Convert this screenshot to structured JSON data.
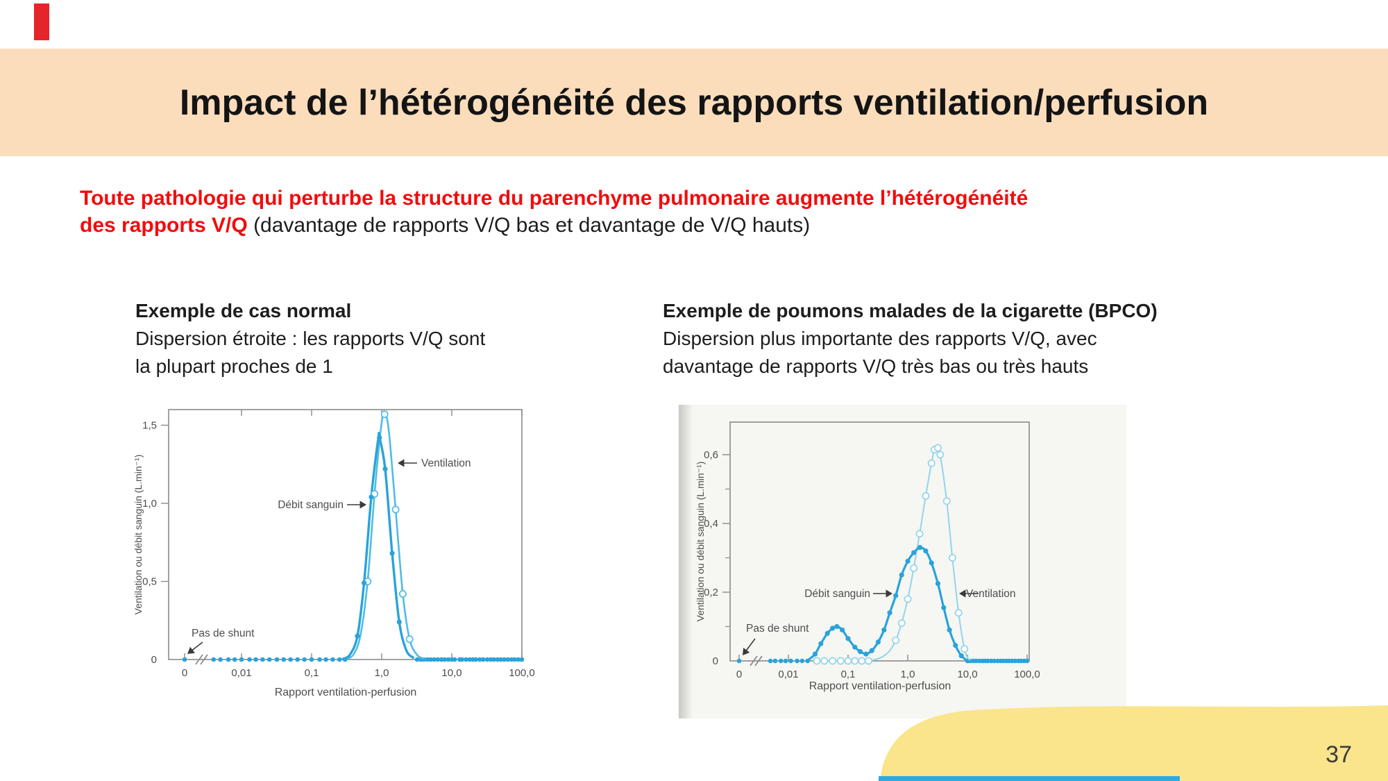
{
  "slide": {
    "title": "Impact de l’hétérogénéité des rapports ventilation/perfusion",
    "page_number": "37"
  },
  "intro": {
    "line1": "Toute pathologie qui perturbe la structure du parenchyme pulmonaire augmente l’hétérogénéité",
    "line2_red": "des rapports V/Q",
    "line2_black": " (davantage de rapports V/Q bas et davantage de V/Q hauts)"
  },
  "columns": {
    "left": {
      "heading": "Exemple de cas normal",
      "line1": "Dispersion étroite : les rapports V/Q sont",
      "line2": "la plupart proches de 1"
    },
    "right": {
      "heading": "Exemple de poumons malades de la cigarette (BPCO)",
      "line1": "Dispersion plus importante des rapports V/Q, avec",
      "line2": "davantage de rapports V/Q très bas ou très hauts"
    }
  },
  "colors": {
    "banner": "#FBDCBB",
    "text_red": "#F40B0B",
    "red_bar": "#E4252B",
    "yellow_shape": "#FAE58D",
    "blue_strip": "#2FA9DF",
    "chart_axis": "#8a8a8a",
    "chart_text": "#4d4d4d",
    "debit_blue": "#29A3DA",
    "vent_blue_light": "#4FBCE5",
    "vent_blue_lighter": "#93D4EF"
  },
  "chart_data": [
    {
      "type": "line",
      "title": "Exemple de cas normal",
      "xlabel": "Rapport ventilation-perfusion",
      "ylabel": "Ventilation ou débit sanguin (L.min⁻¹)",
      "x_scale": "log-with-zero-break",
      "ylim": [
        0,
        1.6
      ],
      "no_shunt_label": "Pas de shunt",
      "x_ticks": [
        {
          "v": 0,
          "label": "0"
        },
        {
          "v": 0.01,
          "label": "0,01"
        },
        {
          "v": 0.1,
          "label": "0,1"
        },
        {
          "v": 1,
          "label": "1,0"
        },
        {
          "v": 10,
          "label": "10,0"
        },
        {
          "v": 100,
          "label": "100,0"
        }
      ],
      "y_ticks": [
        {
          "v": 0,
          "label": "0"
        },
        {
          "v": 0.5,
          "label": "0,5"
        },
        {
          "v": 1.0,
          "label": "1,0"
        },
        {
          "v": 1.5,
          "label": "1,5"
        }
      ],
      "y_minor_ticks": [],
      "series": [
        {
          "name": "Ventilation",
          "color": "#4FBCE5",
          "marker": "open",
          "stroke_width": 2.6,
          "points": [
            [
              0.32,
              0.005
            ],
            [
              0.4,
              0.035
            ],
            [
              0.5,
              0.16
            ],
            [
              0.63,
              0.5
            ],
            [
              0.79,
              1.06
            ],
            [
              1.0,
              1.52
            ],
            [
              1.1,
              1.57
            ],
            [
              1.26,
              1.47
            ],
            [
              1.58,
              0.96
            ],
            [
              2.0,
              0.42
            ],
            [
              2.5,
              0.13
            ],
            [
              3.2,
              0.03
            ],
            [
              4.0,
              0.005
            ]
          ],
          "marker_indices": [
            3,
            4,
            6,
            8,
            9,
            10
          ]
        },
        {
          "name": "Débit sanguin",
          "color": "#29A3DA",
          "marker": "filled",
          "stroke_width": 3.4,
          "points": [
            [
              0.28,
              0.004
            ],
            [
              0.35,
              0.03
            ],
            [
              0.45,
              0.15
            ],
            [
              0.56,
              0.49
            ],
            [
              0.71,
              1.04
            ],
            [
              0.89,
              1.41
            ],
            [
              0.93,
              1.42
            ],
            [
              1.12,
              1.22
            ],
            [
              1.41,
              0.68
            ],
            [
              1.78,
              0.24
            ],
            [
              2.24,
              0.06
            ],
            [
              2.8,
              0.012
            ]
          ],
          "marker_indices": [
            2,
            3,
            4,
            6,
            7,
            8,
            9
          ]
        }
      ],
      "baseline_dots": [
        0,
        0.004,
        0.005,
        0.0065,
        0.008,
        0.01,
        0.013,
        0.016,
        0.02,
        0.025,
        0.032,
        0.04,
        0.05,
        0.063,
        0.079,
        0.1,
        0.13,
        0.16,
        0.2,
        0.25,
        0.3,
        3.2,
        3.6,
        4,
        4.5,
        5,
        5.6,
        6.3,
        7.1,
        7.9,
        8.9,
        10,
        11,
        13,
        14,
        16,
        18,
        20,
        22,
        25,
        28,
        32,
        36,
        40,
        45,
        50,
        56,
        63,
        71,
        79,
        89,
        100
      ]
    },
    {
      "type": "line",
      "title": "Exemple de poumons malades de la cigarette (BPCO)",
      "xlabel": "Rapport ventilation-perfusion",
      "ylabel": "Ventilation ou débit sanguin (L.min⁻¹)",
      "x_scale": "log-with-zero-break",
      "ylim": [
        0,
        0.7
      ],
      "no_shunt_label": "Pas de shunt",
      "x_ticks": [
        {
          "v": 0,
          "label": "0"
        },
        {
          "v": 0.01,
          "label": "0,01"
        },
        {
          "v": 0.1,
          "label": "0,1"
        },
        {
          "v": 1,
          "label": "1,0"
        },
        {
          "v": 10,
          "label": "10,0"
        },
        {
          "v": 100,
          "label": "100,0"
        }
      ],
      "y_ticks": [
        {
          "v": 0,
          "label": "0"
        },
        {
          "v": 0.2,
          "label": "0,2"
        },
        {
          "v": 0.4,
          "label": "0,4"
        },
        {
          "v": 0.6,
          "label": "0,6"
        }
      ],
      "y_minor_ticks": [
        0.1,
        0.3,
        0.5
      ],
      "series": [
        {
          "name": "Ventilation",
          "color": "#93D4EF",
          "marker": "open",
          "stroke_width": 2.0,
          "points": [
            [
              0.03,
              0
            ],
            [
              0.04,
              0
            ],
            [
              0.055,
              0
            ],
            [
              0.075,
              0
            ],
            [
              0.1,
              0
            ],
            [
              0.13,
              0
            ],
            [
              0.17,
              0
            ],
            [
              0.22,
              0
            ],
            [
              0.3,
              0.005
            ],
            [
              0.4,
              0.015
            ],
            [
              0.5,
              0.03
            ],
            [
              0.63,
              0.06
            ],
            [
              0.79,
              0.11
            ],
            [
              1.0,
              0.18
            ],
            [
              1.26,
              0.27
            ],
            [
              1.58,
              0.37
            ],
            [
              2.0,
              0.48
            ],
            [
              2.5,
              0.575
            ],
            [
              2.8,
              0.615
            ],
            [
              3.2,
              0.62
            ],
            [
              3.5,
              0.6
            ],
            [
              4.5,
              0.465
            ],
            [
              5.6,
              0.3
            ],
            [
              7.1,
              0.14
            ],
            [
              8.9,
              0.035
            ],
            [
              10,
              0.01
            ],
            [
              11,
              0.003
            ]
          ],
          "marker_indices": [
            0,
            1,
            2,
            3,
            4,
            5,
            6,
            7,
            11,
            12,
            13,
            14,
            15,
            16,
            17,
            18,
            19,
            20,
            21,
            22,
            23,
            24
          ]
        },
        {
          "name": "Débit sanguin",
          "color": "#29A3DA",
          "marker": "filled",
          "stroke_width": 3.2,
          "points": [
            [
              0.022,
              0.004
            ],
            [
              0.028,
              0.02
            ],
            [
              0.035,
              0.05
            ],
            [
              0.045,
              0.08
            ],
            [
              0.055,
              0.095
            ],
            [
              0.065,
              0.1
            ],
            [
              0.08,
              0.09
            ],
            [
              0.1,
              0.065
            ],
            [
              0.13,
              0.04
            ],
            [
              0.16,
              0.027
            ],
            [
              0.2,
              0.02
            ],
            [
              0.25,
              0.03
            ],
            [
              0.32,
              0.055
            ],
            [
              0.4,
              0.09
            ],
            [
              0.5,
              0.14
            ],
            [
              0.63,
              0.19
            ],
            [
              0.79,
              0.25
            ],
            [
              1.0,
              0.29
            ],
            [
              1.26,
              0.315
            ],
            [
              1.6,
              0.33
            ],
            [
              2.0,
              0.32
            ],
            [
              2.5,
              0.285
            ],
            [
              3.2,
              0.225
            ],
            [
              4.0,
              0.155
            ],
            [
              5.0,
              0.09
            ],
            [
              6.3,
              0.045
            ],
            [
              7.9,
              0.015
            ],
            [
              9.5,
              0.003
            ]
          ],
          "marker_indices": [
            1,
            2,
            3,
            4,
            5,
            6,
            7,
            8,
            9,
            10,
            11,
            12,
            13,
            14,
            15,
            16,
            17,
            18,
            19,
            20,
            21,
            22,
            23,
            24,
            25,
            26
          ]
        }
      ],
      "baseline_dots": [
        0,
        0.005,
        0.006,
        0.0075,
        0.009,
        0.011,
        0.014,
        0.017,
        0.021,
        10,
        11,
        12.5,
        14,
        16,
        18,
        20,
        22,
        25,
        28,
        32,
        36,
        40,
        45,
        50,
        56,
        63,
        71,
        79,
        89,
        100
      ]
    }
  ]
}
